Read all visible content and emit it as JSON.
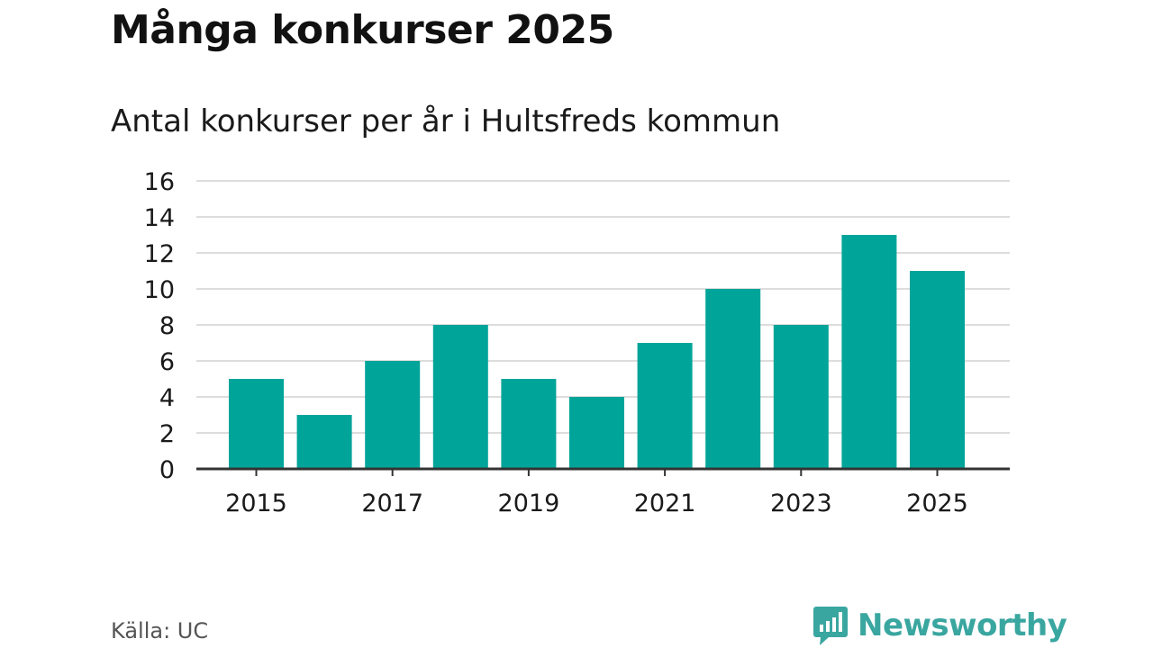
{
  "header": {
    "title": "Många konkurser 2025",
    "subtitle": "Antal konkurser per år i Hultsfreds kommun"
  },
  "footer": {
    "source": "Källa: UC",
    "brand": "Newsworthy",
    "brand_icon": "bar-chart-speech-bubble-icon"
  },
  "colors": {
    "bar": "#00A499",
    "brand": "#3AA6A0",
    "grid": "#DDDDDD",
    "axis": "#333333",
    "text": "#1A1A1A"
  },
  "chart_data": {
    "type": "bar",
    "title": "Antal konkurser per år i Hultsfreds kommun",
    "xlabel": "",
    "ylabel": "",
    "categories": [
      "2015",
      "2016",
      "2017",
      "2018",
      "2019",
      "2020",
      "2021",
      "2022",
      "2023",
      "2024",
      "2025"
    ],
    "values": [
      5,
      3,
      6,
      8,
      5,
      4,
      7,
      10,
      8,
      13,
      11
    ],
    "x_tick_labels": [
      "2015",
      "2017",
      "2019",
      "2021",
      "2023",
      "2025"
    ],
    "y_ticks": [
      0,
      2,
      4,
      6,
      8,
      10,
      12,
      14,
      16
    ],
    "ylim": [
      0,
      16
    ],
    "grid": true,
    "legend": "none"
  }
}
